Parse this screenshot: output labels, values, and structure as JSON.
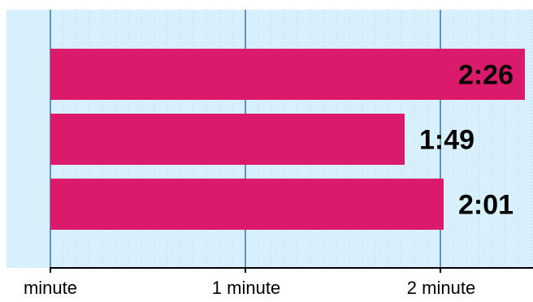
{
  "chart_data": {
    "type": "bar",
    "orientation": "horizontal",
    "values_seconds": [
      146,
      109,
      121
    ],
    "data_labels": [
      "2:26",
      "1:49",
      "2:01"
    ],
    "x_ticks": [
      {
        "value": 0,
        "label": "minute"
      },
      {
        "value": 60,
        "label": "1 minute"
      },
      {
        "value": 120,
        "label": "2 minute"
      }
    ],
    "xlim_seconds": [
      0,
      150
    ],
    "grid": true,
    "legend": "none",
    "title": "",
    "xlabel": "",
    "ylabel": "",
    "colors": {
      "bar": "#db1a6b",
      "plot_background": "#d7f0fb",
      "major_grid": "#5b8fd6",
      "minor_grid": "#b7d3df",
      "axis": "#000000",
      "label_inside": "#000000",
      "label_outside": "#000000"
    }
  }
}
